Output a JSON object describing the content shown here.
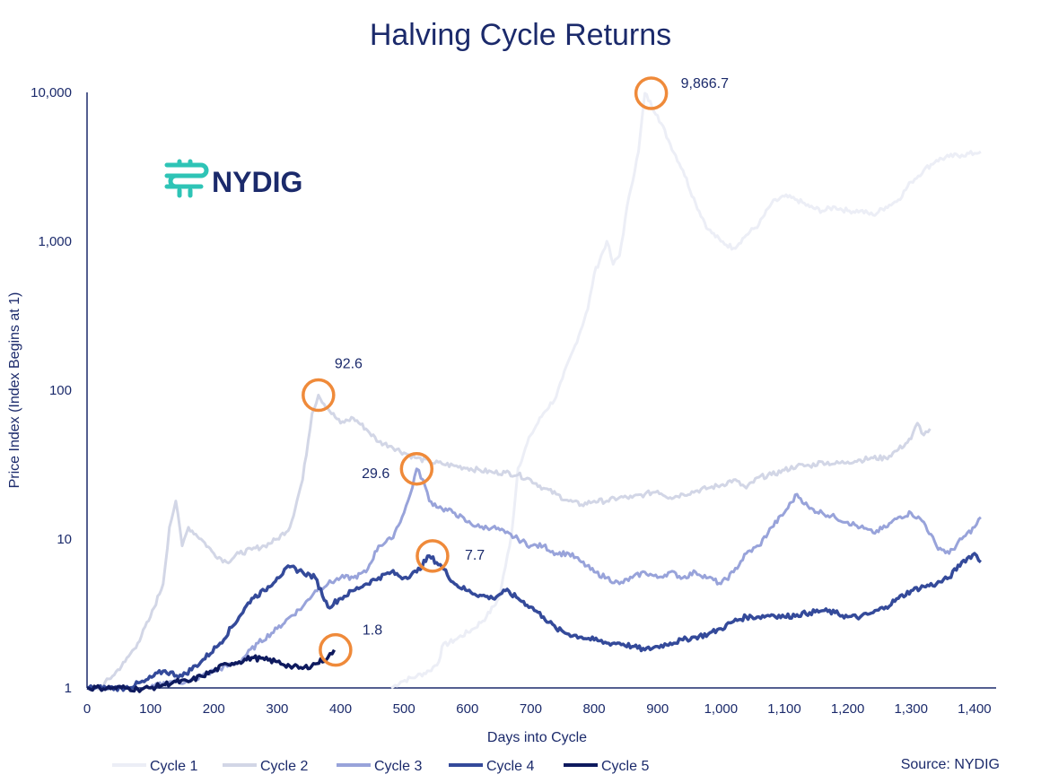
{
  "chart_data": {
    "type": "line",
    "title": "Halving Cycle Returns",
    "xlabel": "Days into Cycle",
    "ylabel": "Price Index (Index Begins at 1)",
    "yscale": "log",
    "xlim": [
      0,
      1420
    ],
    "ylim": [
      1,
      10000
    ],
    "x_ticks": [
      "0",
      "100",
      "200",
      "300",
      "400",
      "500",
      "600",
      "700",
      "800",
      "900",
      "1,000",
      "1,100",
      "1,200",
      "1,300",
      "1,400"
    ],
    "y_ticks": [
      "1",
      "10",
      "100",
      "1,000",
      "10,000"
    ],
    "grid": false,
    "legend_position": "bottom",
    "source": "Source: NYDIG",
    "logo_text": "NYDIG",
    "series": [
      {
        "name": "Cycle 1",
        "color": "#eceef6",
        "x": [
          480,
          495,
          520,
          540,
          555,
          560,
          580,
          610,
          630,
          650,
          660,
          670,
          680,
          700,
          720,
          740,
          750,
          770,
          790,
          800,
          820,
          830,
          840,
          855,
          870,
          880,
          900,
          920,
          940,
          960,
          980,
          1000,
          1020,
          1040,
          1060,
          1080,
          1100,
          1120,
          1140,
          1160,
          1180,
          1200,
          1220,
          1240,
          1260,
          1280,
          1300,
          1320,
          1340,
          1360,
          1380,
          1400,
          1410
        ],
        "y": [
          1.0,
          1.1,
          1.2,
          1.3,
          1.5,
          1.9,
          2.1,
          2.5,
          3.0,
          4.0,
          6.5,
          11,
          30,
          50,
          70,
          90,
          120,
          200,
          350,
          600,
          1000,
          700,
          800,
          2000,
          4000,
          9866.7,
          7000,
          4500,
          3000,
          1800,
          1200,
          1000,
          900,
          1100,
          1300,
          1800,
          2000,
          1900,
          1700,
          1600,
          1700,
          1600,
          1600,
          1500,
          1700,
          1900,
          2500,
          3000,
          3500,
          3700,
          3800,
          3900,
          4000
        ]
      },
      {
        "name": "Cycle 2",
        "color": "#d2d6e6",
        "x": [
          0,
          20,
          40,
          60,
          80,
          100,
          120,
          130,
          140,
          150,
          160,
          180,
          200,
          220,
          240,
          260,
          280,
          300,
          320,
          340,
          355,
          365,
          380,
          400,
          420,
          440,
          460,
          480,
          500,
          520,
          540,
          560,
          580,
          600,
          620,
          640,
          660,
          680,
          700,
          720,
          740,
          760,
          780,
          800,
          820,
          840,
          860,
          880,
          900,
          920,
          940,
          960,
          980,
          1000,
          1020,
          1040,
          1060,
          1080,
          1100,
          1120,
          1140,
          1160,
          1180,
          1200,
          1220,
          1240,
          1260,
          1280,
          1300,
          1310,
          1320,
          1330
        ],
        "y": [
          1.0,
          1.0,
          1.2,
          1.5,
          2.0,
          3.0,
          5.0,
          12,
          18,
          9,
          12,
          10,
          8,
          7,
          8,
          8.5,
          9,
          10,
          12,
          25,
          70,
          92.6,
          75,
          60,
          65,
          55,
          45,
          42,
          38,
          35,
          33,
          32,
          31,
          30,
          29,
          28,
          28,
          27,
          25,
          22,
          20,
          18,
          17,
          18,
          18,
          19,
          19,
          20,
          21,
          19,
          20,
          21,
          22,
          23,
          25,
          22,
          26,
          27,
          29,
          31,
          31,
          33,
          32,
          33,
          34,
          35,
          35,
          40,
          47,
          60,
          50,
          55
        ]
      },
      {
        "name": "Cycle 3",
        "color": "#98a3da",
        "x": [
          100,
          130,
          160,
          200,
          240,
          270,
          300,
          320,
          340,
          360,
          380,
          400,
          420,
          440,
          460,
          480,
          500,
          510,
          520,
          530,
          540,
          560,
          580,
          600,
          620,
          640,
          660,
          680,
          700,
          720,
          740,
          760,
          780,
          800,
          820,
          840,
          860,
          880,
          900,
          920,
          940,
          960,
          980,
          1000,
          1020,
          1040,
          1060,
          1080,
          1100,
          1120,
          1140,
          1160,
          1180,
          1200,
          1220,
          1240,
          1260,
          1280,
          1300,
          1320,
          1340,
          1360,
          1380,
          1400,
          1410
        ],
        "y": [
          1.0,
          1.1,
          1.1,
          1.3,
          1.5,
          2.0,
          2.5,
          3.0,
          3.5,
          4.5,
          5.0,
          5.5,
          5.5,
          6.0,
          9.0,
          10.0,
          15.0,
          20.0,
          29.6,
          25.0,
          18.0,
          16.0,
          15.0,
          13.0,
          12.0,
          12.0,
          11.0,
          10.0,
          9.0,
          9.0,
          8.0,
          8.0,
          7.0,
          6.0,
          5.5,
          5.0,
          5.5,
          6.0,
          5.5,
          6.0,
          5.5,
          6.0,
          5.5,
          5.0,
          6.0,
          8.0,
          9.0,
          12.0,
          15.0,
          20.0,
          16.0,
          15.0,
          14.0,
          13.0,
          12.0,
          11.0,
          12.0,
          14.0,
          15.0,
          13.0,
          9.0,
          8.0,
          10.0,
          12.0,
          14.0
        ]
      },
      {
        "name": "Cycle 4",
        "color": "#344a9a",
        "x": [
          0,
          30,
          60,
          90,
          120,
          150,
          180,
          210,
          240,
          260,
          280,
          300,
          320,
          340,
          360,
          380,
          400,
          420,
          440,
          460,
          480,
          500,
          520,
          540,
          560,
          580,
          600,
          620,
          640,
          660,
          680,
          700,
          720,
          740,
          760,
          780,
          800,
          820,
          840,
          860,
          880,
          900,
          920,
          940,
          960,
          980,
          1000,
          1020,
          1040,
          1060,
          1080,
          1100,
          1120,
          1140,
          1160,
          1180,
          1200,
          1220,
          1240,
          1260,
          1280,
          1300,
          1320,
          1340,
          1360,
          1380,
          1400,
          1410
        ],
        "y": [
          1.0,
          1.0,
          1.0,
          1.1,
          1.3,
          1.2,
          1.5,
          2.0,
          3.0,
          4.0,
          4.5,
          5.5,
          6.5,
          6.0,
          5.5,
          3.5,
          4.0,
          4.5,
          5.0,
          5.5,
          6.0,
          5.5,
          6.0,
          7.7,
          6.5,
          5.0,
          4.5,
          4.2,
          4.0,
          4.5,
          4.0,
          3.5,
          3.0,
          2.5,
          2.3,
          2.2,
          2.1,
          2.0,
          2.0,
          1.9,
          1.8,
          1.9,
          2.0,
          2.1,
          2.2,
          2.3,
          2.5,
          2.8,
          3.0,
          3.0,
          3.1,
          3.0,
          3.1,
          3.2,
          3.3,
          3.2,
          3.0,
          3.0,
          3.2,
          3.5,
          4.0,
          4.5,
          4.8,
          5.0,
          5.5,
          7.0,
          8.0,
          7.0
        ]
      },
      {
        "name": "Cycle 5",
        "color": "#0e1a5e",
        "x": [
          0,
          20,
          40,
          60,
          80,
          100,
          120,
          140,
          160,
          180,
          200,
          220,
          240,
          260,
          280,
          300,
          320,
          340,
          360,
          380,
          390
        ],
        "y": [
          1.0,
          1.0,
          1.0,
          1.0,
          0.98,
          1.0,
          1.05,
          1.1,
          1.1,
          1.2,
          1.3,
          1.45,
          1.5,
          1.6,
          1.55,
          1.5,
          1.4,
          1.35,
          1.45,
          1.6,
          1.8
        ]
      }
    ],
    "annotations": [
      {
        "x": 890,
        "y": 9866.7,
        "text": "9,866.7"
      },
      {
        "x": 365,
        "y": 92.6,
        "text": "92.6"
      },
      {
        "x": 520,
        "y": 29.6,
        "text": "29.6"
      },
      {
        "x": 545,
        "y": 7.7,
        "text": "7.7"
      },
      {
        "x": 392,
        "y": 1.8,
        "text": "1.8"
      }
    ],
    "annotation_marker_color": "#ef8a3a"
  }
}
